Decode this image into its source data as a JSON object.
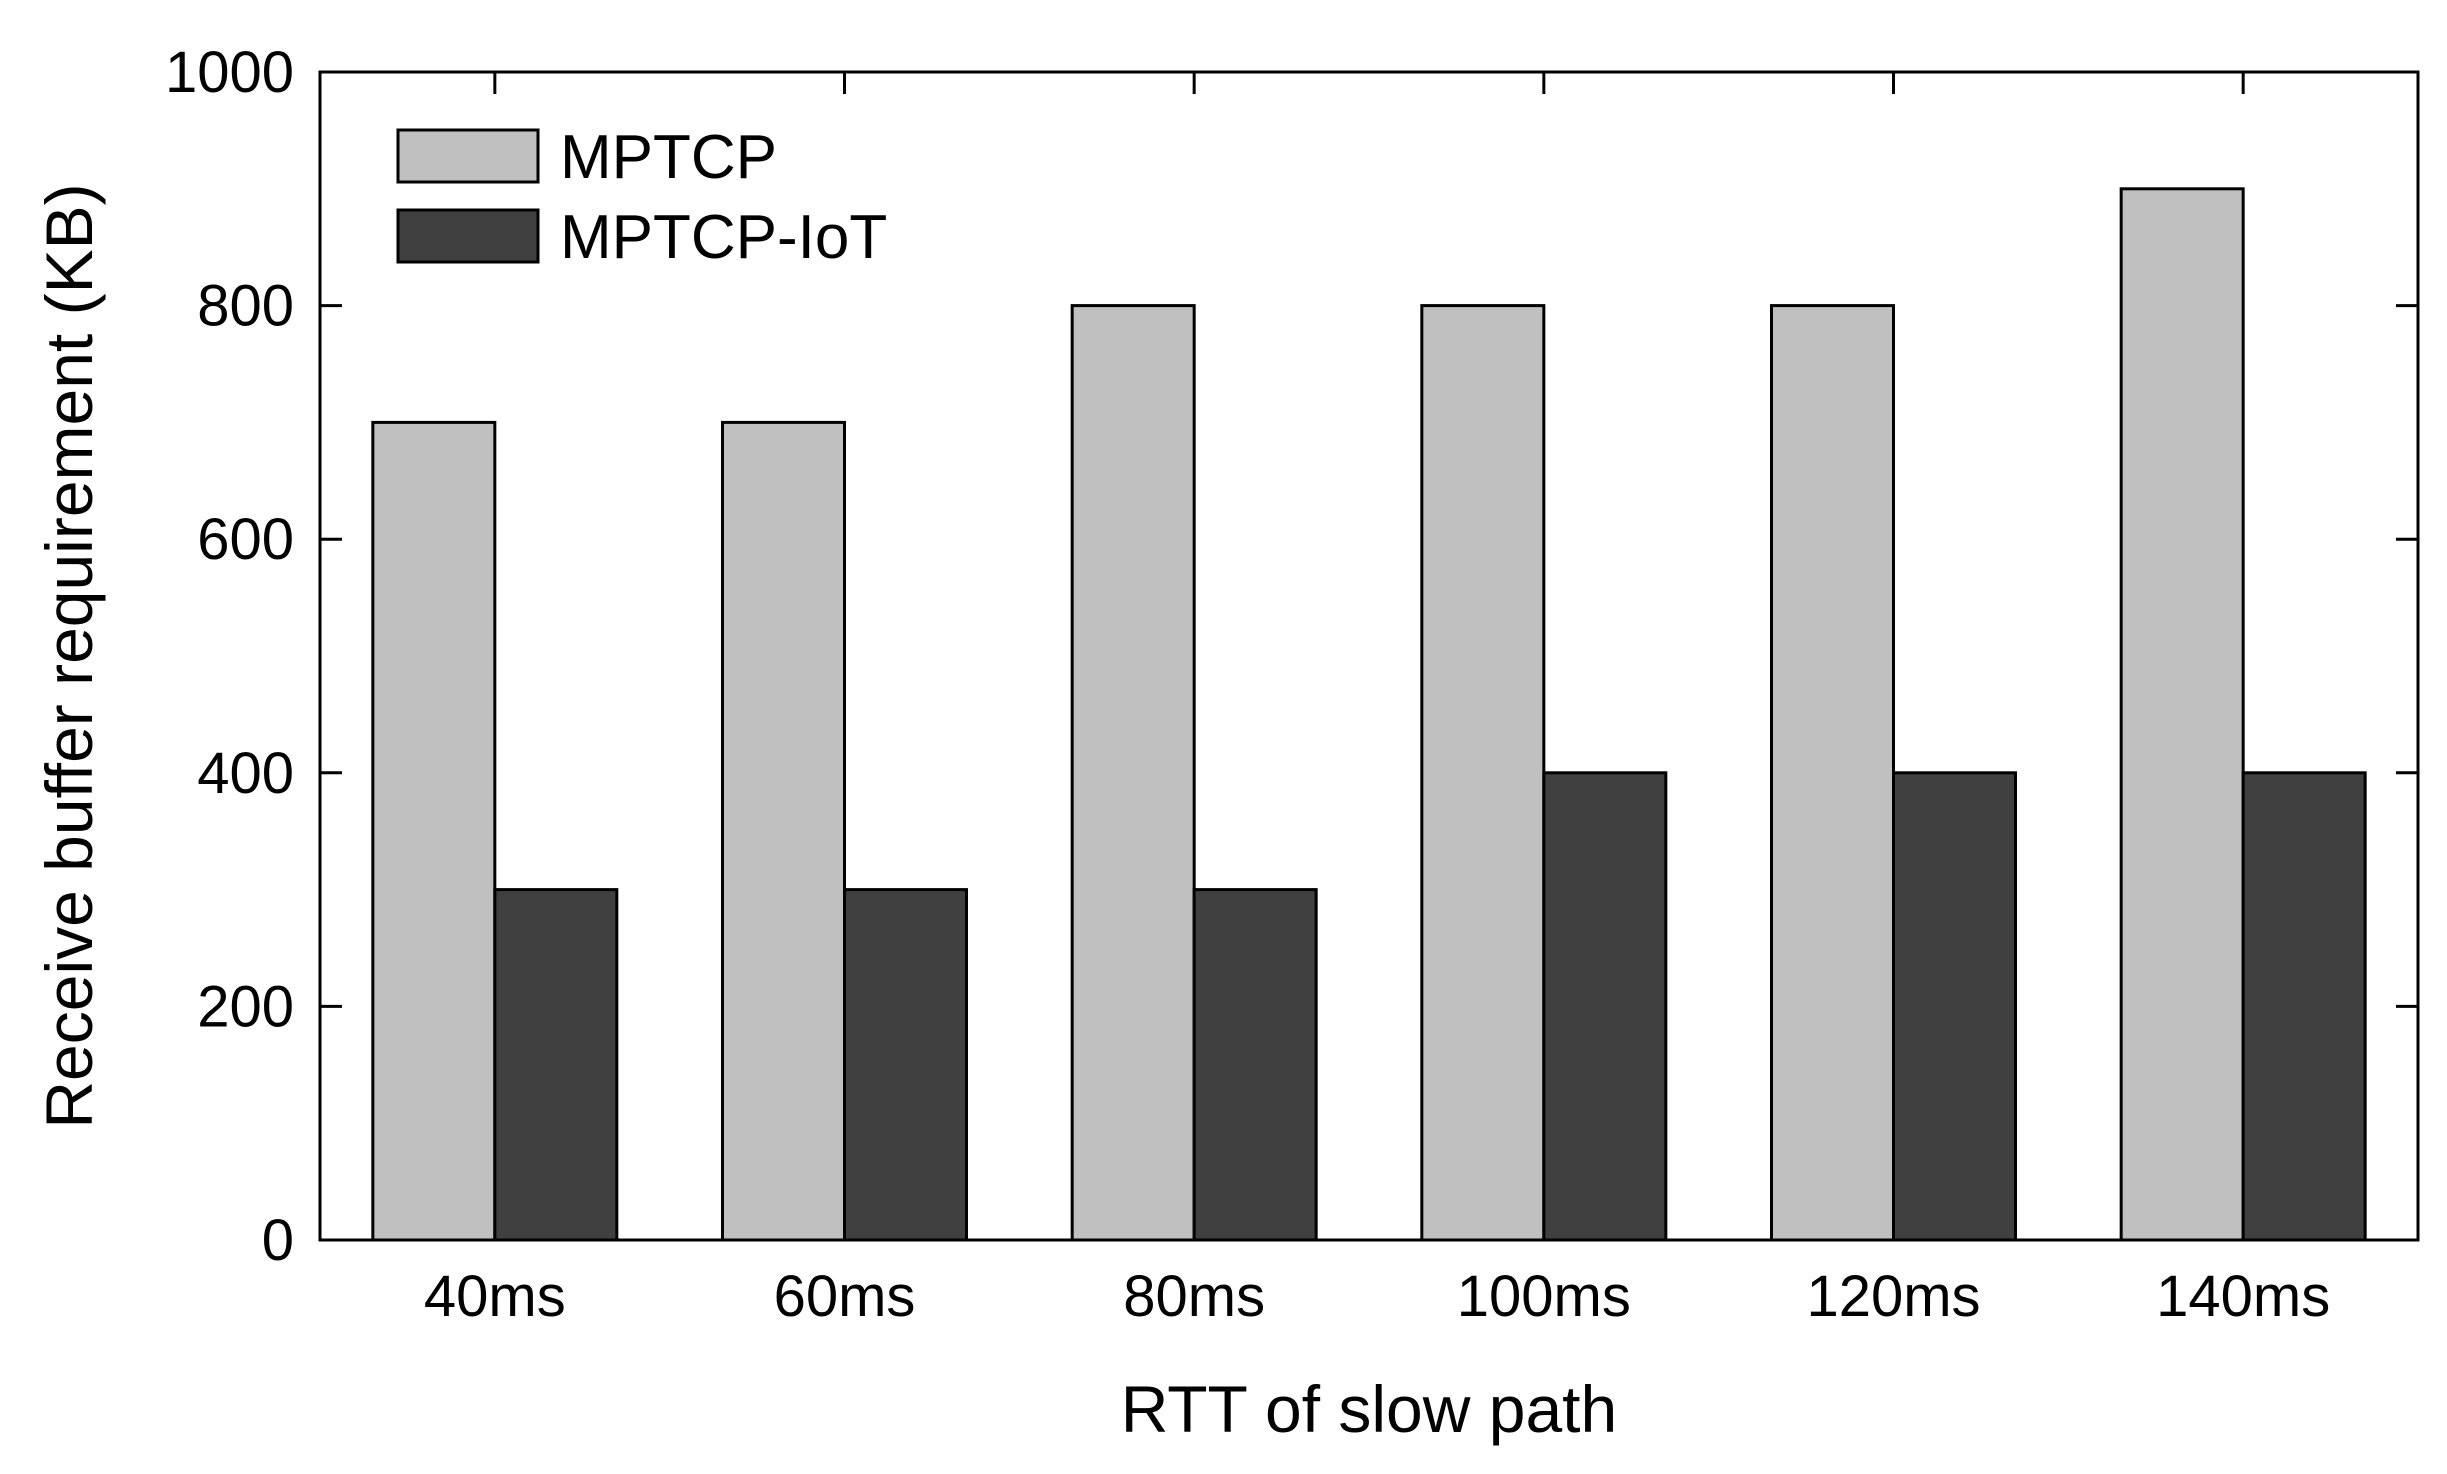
{
  "chart_data": {
    "type": "bar",
    "title": "",
    "xlabel": "RTT of slow path",
    "ylabel": "Receive buffer requirement (KB)",
    "categories": [
      "40ms",
      "60ms",
      "80ms",
      "100ms",
      "120ms",
      "140ms"
    ],
    "series": [
      {
        "name": "MPTCP",
        "color": "#c0c0c0",
        "values": [
          700,
          700,
          800,
          800,
          800,
          900
        ]
      },
      {
        "name": "MPTCP-IoT",
        "color": "#404040",
        "values": [
          300,
          300,
          300,
          400,
          400,
          400
        ]
      }
    ],
    "ylim": [
      0,
      1000
    ],
    "yticks": [
      0,
      200,
      400,
      600,
      800,
      1000
    ],
    "grid": false,
    "legend_position": "top-left"
  }
}
